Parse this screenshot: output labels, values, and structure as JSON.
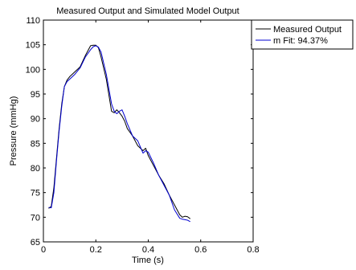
{
  "chart_data": {
    "type": "line",
    "title": "Measured Output and Simulated Model Output",
    "xlabel": "Time (s)",
    "ylabel": "Pressure (mmHg)",
    "xlim": [
      0,
      0.8
    ],
    "ylim": [
      65,
      110
    ],
    "x_ticks": [
      0,
      0.2,
      0.4,
      0.6,
      0.8
    ],
    "x_tick_labels": [
      "0",
      "0.2",
      "0.4",
      "0.6",
      "0.8"
    ],
    "y_ticks": [
      65,
      70,
      75,
      80,
      85,
      90,
      95,
      100,
      105,
      110
    ],
    "y_tick_labels": [
      "65",
      "70",
      "75",
      "80",
      "85",
      "90",
      "95",
      "100",
      "105",
      "110"
    ],
    "grid": false,
    "legend_position": "outside-top-right",
    "series": [
      {
        "name": "Measured Output",
        "color": "#000000",
        "x": [
          0.02,
          0.03,
          0.04,
          0.05,
          0.06,
          0.07,
          0.08,
          0.09,
          0.1,
          0.12,
          0.14,
          0.16,
          0.18,
          0.19,
          0.2,
          0.21,
          0.22,
          0.24,
          0.26,
          0.27,
          0.28,
          0.29,
          0.3,
          0.31,
          0.32,
          0.34,
          0.36,
          0.38,
          0.39,
          0.4,
          0.42,
          0.44,
          0.46,
          0.48,
          0.5,
          0.52,
          0.53,
          0.54,
          0.55,
          0.56
        ],
        "y": [
          71.8,
          72.2,
          76,
          82,
          88,
          93,
          96.5,
          97.8,
          98.5,
          99.5,
          100.5,
          102.8,
          104.8,
          104.9,
          104.9,
          104.4,
          102.5,
          98,
          91.5,
          91.2,
          91.8,
          91.2,
          90.5,
          89.5,
          88,
          86.5,
          84.5,
          83.5,
          84,
          82.5,
          80.5,
          78.5,
          76.8,
          74.5,
          72.5,
          70.5,
          70,
          70.2,
          70.1,
          69.7
        ]
      },
      {
        "name": "m Fit: 94.37%",
        "color": "#0000d0",
        "x": [
          0.02,
          0.03,
          0.04,
          0.05,
          0.06,
          0.07,
          0.08,
          0.09,
          0.1,
          0.12,
          0.14,
          0.16,
          0.18,
          0.19,
          0.2,
          0.21,
          0.22,
          0.24,
          0.26,
          0.27,
          0.28,
          0.29,
          0.3,
          0.31,
          0.32,
          0.34,
          0.36,
          0.38,
          0.39,
          0.4,
          0.42,
          0.44,
          0.46,
          0.48,
          0.5,
          0.52,
          0.53,
          0.54,
          0.55,
          0.56
        ],
        "y": [
          72,
          71.9,
          75,
          81.5,
          87.5,
          92.5,
          96.5,
          97.5,
          98,
          99,
          100.3,
          102.5,
          104,
          104.6,
          104.8,
          104.5,
          103.5,
          99,
          93,
          91.5,
          91,
          91.5,
          91.8,
          90.5,
          89,
          86.5,
          85.5,
          83,
          83.5,
          83.2,
          81,
          78.5,
          76.5,
          74.5,
          71.5,
          69.8,
          69.6,
          69.5,
          69.4,
          69.1
        ]
      }
    ]
  }
}
